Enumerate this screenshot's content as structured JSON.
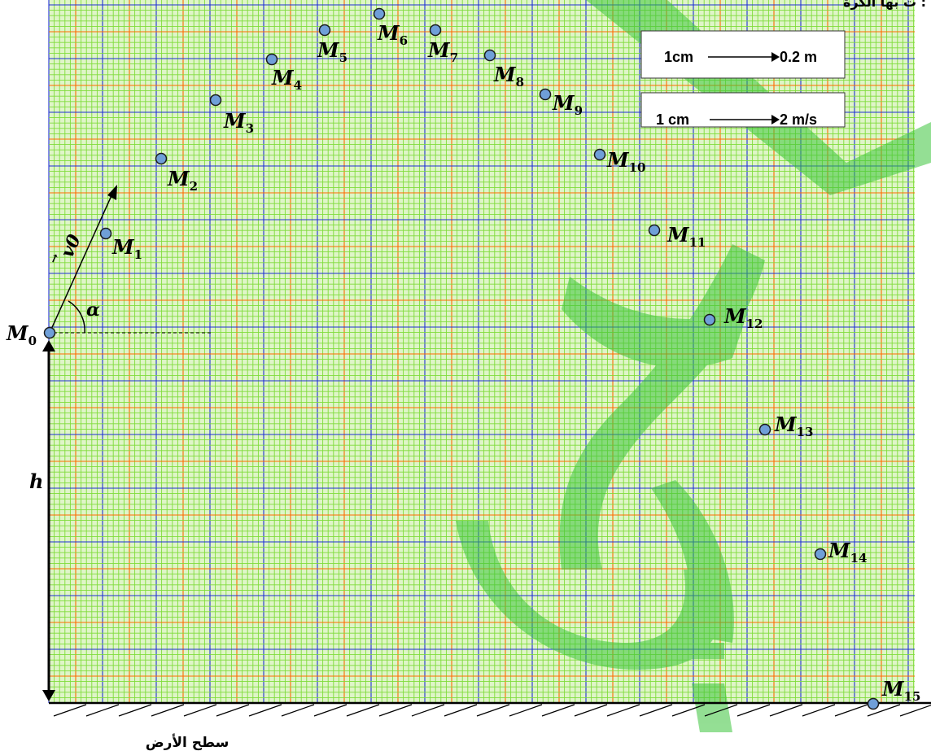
{
  "header_text": "ت بها الكرة :",
  "scales": {
    "distance": {
      "from": "1cm",
      "to": "0.2 m"
    },
    "speed": {
      "from": "1 cm",
      "to": "2 m/s"
    }
  },
  "vector_label": "v0",
  "angle_label": "α",
  "height_label": "h",
  "ground_label": "سطح الأرض",
  "points": [
    {
      "id": "M",
      "sub": "0"
    },
    {
      "id": "M",
      "sub": "1"
    },
    {
      "id": "M",
      "sub": "2"
    },
    {
      "id": "M",
      "sub": "3"
    },
    {
      "id": "M",
      "sub": "4"
    },
    {
      "id": "M",
      "sub": "5"
    },
    {
      "id": "M",
      "sub": "6"
    },
    {
      "id": "M",
      "sub": "7"
    },
    {
      "id": "M",
      "sub": "8"
    },
    {
      "id": "M",
      "sub": "9"
    },
    {
      "id": "M",
      "sub": "10"
    },
    {
      "id": "M",
      "sub": "11"
    },
    {
      "id": "M",
      "sub": "12"
    },
    {
      "id": "M",
      "sub": "13"
    },
    {
      "id": "M",
      "sub": "14"
    },
    {
      "id": "M",
      "sub": "15"
    }
  ],
  "colors": {
    "grid_fine": "#7fdc3a",
    "grid_mid": "#ff6a00",
    "grid_major": "#1f2fd6",
    "point_fill": "#6f9fd8",
    "watermark": "#3cc43c"
  }
}
